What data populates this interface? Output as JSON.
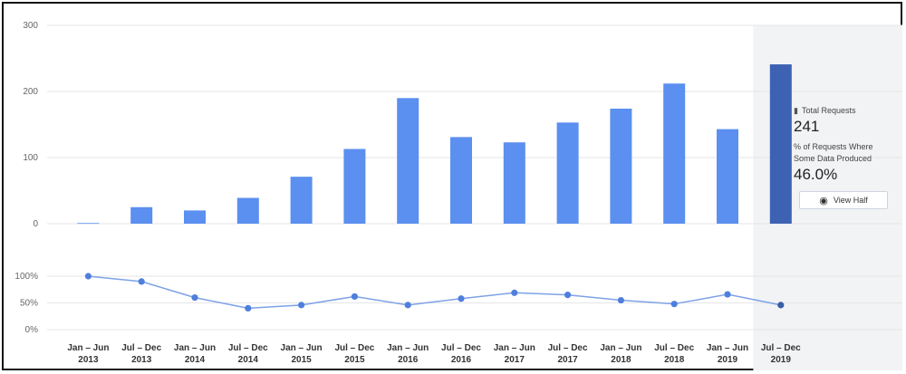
{
  "chart_data": {
    "type": "bar",
    "categories": [
      "Jan – Jun 2013",
      "Jul – Dec 2013",
      "Jan – Jun 2014",
      "Jul – Dec 2014",
      "Jan – Jun 2015",
      "Jul – Dec 2015",
      "Jan – Jun 2016",
      "Jul – Dec 2016",
      "Jan – Jun 2017",
      "Jul – Dec 2017",
      "Jan – Jun 2018",
      "Jul – Dec 2018",
      "Jan – Jun 2019",
      "Jul – Dec 2019"
    ],
    "category_lines": [
      [
        "Jan – Jun",
        "2013"
      ],
      [
        "Jul – Dec",
        "2013"
      ],
      [
        "Jan – Jun",
        "2014"
      ],
      [
        "Jul – Dec",
        "2014"
      ],
      [
        "Jan – Jun",
        "2015"
      ],
      [
        "Jul – Dec",
        "2015"
      ],
      [
        "Jan – Jun",
        "2016"
      ],
      [
        "Jul – Dec",
        "2016"
      ],
      [
        "Jan – Jun",
        "2017"
      ],
      [
        "Jul – Dec",
        "2017"
      ],
      [
        "Jan – Jun",
        "2018"
      ],
      [
        "Jul – Dec",
        "2018"
      ],
      [
        "Jan – Jun",
        "2019"
      ],
      [
        "Jul – Dec",
        "2019"
      ]
    ],
    "bar_values": [
      1,
      25,
      20,
      39,
      71,
      113,
      190,
      131,
      123,
      153,
      174,
      212,
      143,
      241
    ],
    "bar_ylim": [
      0,
      300
    ],
    "bar_yticks": [
      "0",
      "100",
      "200",
      "300"
    ],
    "bar_ytick_values": [
      0,
      100,
      200,
      300
    ],
    "line_values": [
      100,
      90,
      60,
      40,
      46,
      62,
      46,
      58,
      69,
      65,
      55,
      48,
      66,
      46
    ],
    "line_ylim": [
      0,
      100
    ],
    "line_yticks": [
      "0%",
      "50%",
      "100%"
    ],
    "line_ytick_values": [
      0,
      50,
      100
    ],
    "highlight_index": 13,
    "grid": true
  },
  "colors": {
    "bar": "#5b8ff0",
    "bar_selected": "#3d62b3",
    "line": "#7ea2e6",
    "point": "#4f7fdd",
    "point_selected": "#3a5ea8",
    "highlight_bg": "#f1f3f4",
    "grid": "#e6e6e6"
  },
  "panel": {
    "total_requests_label": "Total Requests",
    "total_requests_icon": "bar-chart-icon",
    "total_requests_value": "241",
    "pct_label": "% of Requests Where Some Data Produced",
    "pct_icon": "trend-check-icon",
    "pct_value": "46.0%",
    "view_button_label": "View Half",
    "view_button_icon": "eye-icon"
  }
}
